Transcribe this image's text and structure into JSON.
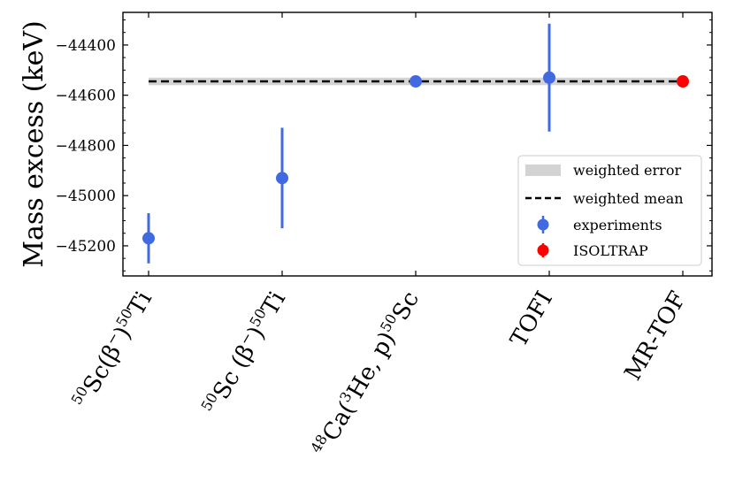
{
  "chart_data": {
    "type": "scatter",
    "ylabel": "Mass excess (keV)",
    "xlabel": "",
    "ylim": [
      -45320,
      -44270
    ],
    "yticks": [
      -45200,
      -45000,
      -44800,
      -44600,
      -44400
    ],
    "ytick_labels": [
      "−45200",
      "−45000",
      "−44800",
      "−44600",
      "−44400"
    ],
    "categories": [
      {
        "mass": "50",
        "main": "Sc(β",
        "sup": "−",
        "close": ")",
        "mass2": "50",
        "tail": "Ti"
      },
      {
        "mass": "50",
        "main": "Sc (β",
        "sup": "−",
        "close": ")",
        "mass2": "50",
        "tail": "Ti"
      },
      {
        "mass": "48",
        "main": "Ca(",
        "sup": "3",
        "close": "He, p)",
        "mass2": "50",
        "tail": "Sc"
      },
      {
        "mass": "",
        "main": "TOFI",
        "sup": "",
        "close": "",
        "mass2": "",
        "tail": ""
      },
      {
        "mass": "",
        "main": "MR-TOF",
        "sup": "",
        "close": "",
        "mass2": "",
        "tail": ""
      }
    ],
    "series": [
      {
        "name": "experiments",
        "color": "#4169e1",
        "points": [
          {
            "x": 0,
            "y": -45170,
            "err": 100
          },
          {
            "x": 1,
            "y": -44930,
            "err": 200
          },
          {
            "x": 2,
            "y": -44545,
            "err": 0
          },
          {
            "x": 3,
            "y": -44530,
            "err": 215
          }
        ]
      },
      {
        "name": "ISOLTRAP",
        "color": "#ff0000",
        "points": [
          {
            "x": 4,
            "y": -44545,
            "err": 2
          }
        ]
      }
    ],
    "weighted_mean": -44545,
    "weighted_error": 15,
    "mean_color": "#000000",
    "error_color": "#d3d3d3",
    "legend": {
      "position": "right",
      "entries": [
        "weighted error",
        "weighted mean",
        "experiments",
        "ISOLTRAP"
      ]
    }
  }
}
